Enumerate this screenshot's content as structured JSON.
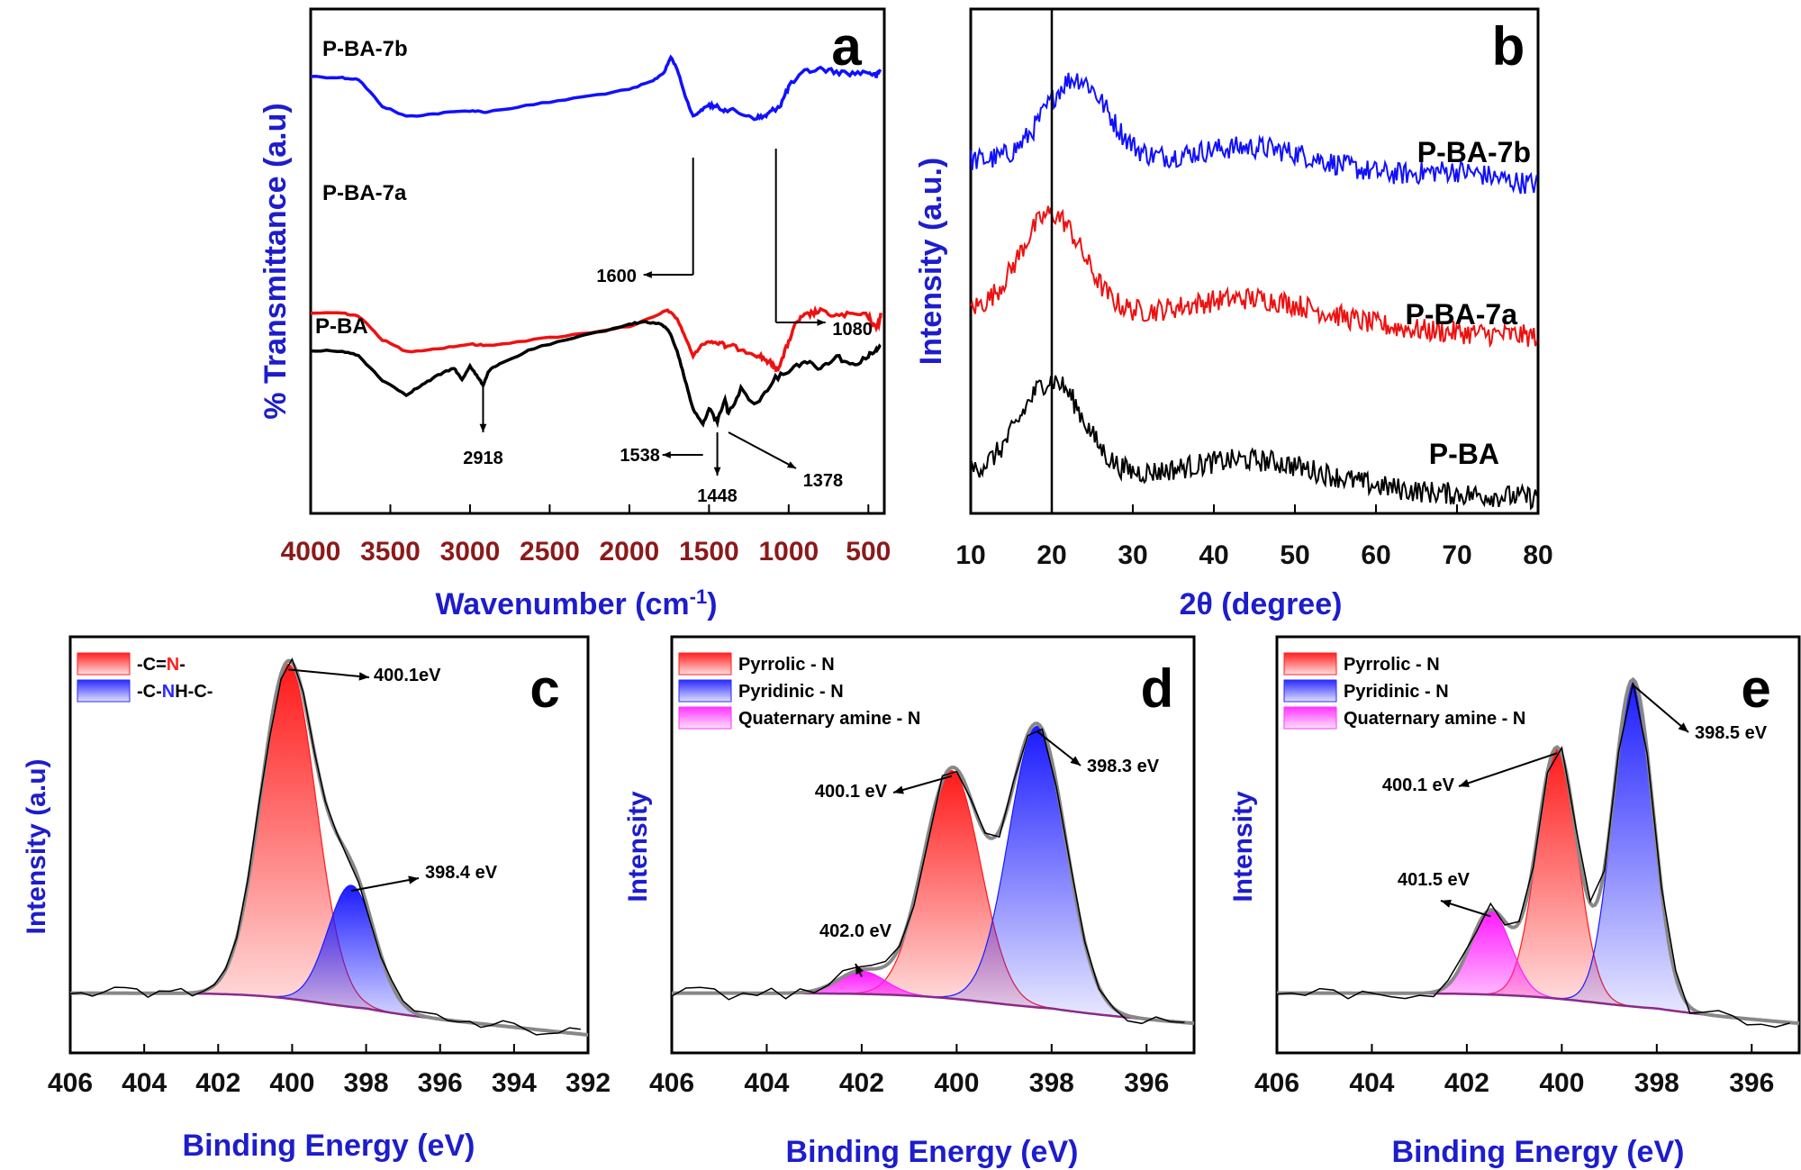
{
  "chart_data": [
    {
      "panel": "a",
      "type": "line",
      "xlabel": "Wavenumber (cm-1)",
      "xlabel_base": "Wavenumber (cm",
      "xlabel_sup": "-1",
      "xlabel_end": ")",
      "ylabel": "% Transmittance (a.u)",
      "xlim": [
        4000,
        400
      ],
      "xticks": [
        4000,
        3500,
        3000,
        2500,
        2000,
        1500,
        1000,
        500
      ],
      "series": [
        {
          "name": "P-BA-7b",
          "color": "#1010ff",
          "x": [
            4000,
            3800,
            3700,
            3550,
            3400,
            3200,
            3000,
            2900,
            2600,
            2300,
            2000,
            1850,
            1780,
            1740,
            1700,
            1650,
            1600,
            1550,
            1500,
            1450,
            1400,
            1300,
            1200,
            1150,
            1100,
            1050,
            1000,
            900,
            800,
            700,
            600,
            500,
            450,
            420
          ],
          "y": [
            0.85,
            0.84,
            0.83,
            0.65,
            0.58,
            0.6,
            0.62,
            0.61,
            0.66,
            0.71,
            0.76,
            0.82,
            0.88,
            0.98,
            0.9,
            0.72,
            0.58,
            0.62,
            0.66,
            0.64,
            0.63,
            0.6,
            0.57,
            0.58,
            0.62,
            0.66,
            0.78,
            0.88,
            0.9,
            0.88,
            0.87,
            0.88,
            0.85,
            0.9
          ]
        },
        {
          "name": "P-BA-7a",
          "color": "#ee1111",
          "x": [
            4000,
            3800,
            3700,
            3550,
            3400,
            3200,
            3000,
            2900,
            2600,
            2300,
            2000,
            1850,
            1760,
            1700,
            1650,
            1600,
            1550,
            1500,
            1450,
            1400,
            1300,
            1200,
            1150,
            1100,
            1080,
            1050,
            1000,
            950,
            900,
            850,
            800,
            700,
            600,
            500,
            460,
            430,
            420
          ],
          "y": [
            0.44,
            0.44,
            0.42,
            0.26,
            0.18,
            0.2,
            0.23,
            0.22,
            0.26,
            0.3,
            0.35,
            0.41,
            0.46,
            0.4,
            0.28,
            0.15,
            0.22,
            0.25,
            0.24,
            0.22,
            0.2,
            0.16,
            0.13,
            0.09,
            0.06,
            0.1,
            0.25,
            0.38,
            0.42,
            0.44,
            0.45,
            0.42,
            0.43,
            0.42,
            0.34,
            0.38,
            0.45
          ]
        },
        {
          "name": "P-BA",
          "color": "#000000",
          "x": [
            4000,
            3800,
            3700,
            3550,
            3400,
            3300,
            3200,
            3100,
            3050,
            3000,
            2950,
            2918,
            2880,
            2800,
            2600,
            2300,
            2000,
            1900,
            1800,
            1750,
            1700,
            1650,
            1600,
            1538,
            1500,
            1448,
            1400,
            1378,
            1300,
            1200,
            1100,
            1000,
            900,
            800,
            700,
            600,
            500,
            450,
            420
          ],
          "y": [
            0.02,
            0.02,
            0.0,
            -0.1,
            -0.16,
            -0.12,
            -0.08,
            -0.05,
            -0.1,
            -0.04,
            -0.09,
            -0.12,
            -0.06,
            -0.03,
            0.03,
            0.08,
            0.13,
            0.14,
            0.13,
            0.1,
            0.02,
            -0.1,
            -0.22,
            -0.28,
            -0.22,
            -0.27,
            -0.18,
            -0.24,
            -0.14,
            -0.2,
            -0.1,
            -0.06,
            -0.02,
            -0.05,
            0.0,
            -0.04,
            0.0,
            0.02,
            0.04
          ]
        }
      ],
      "annotations": [
        "2918",
        "1538",
        "1448",
        "1378",
        "1600",
        "1080"
      ]
    },
    {
      "panel": "b",
      "type": "line",
      "xlabel": "2θ (degree)",
      "ylabel": "Intensity (a.u.)",
      "xlim": [
        10,
        80
      ],
      "xticks": [
        10,
        20,
        30,
        40,
        50,
        60,
        70,
        80
      ],
      "vline": 20,
      "series": [
        {
          "name": "P-BA-7b",
          "color": "#1010ff",
          "peak_center": 23,
          "peak_height": 0.17,
          "baseline": 0.7
        },
        {
          "name": "P-BA-7a",
          "color": "#ee1111",
          "peak_center": 20,
          "peak_height": 0.2,
          "baseline": 0.4
        },
        {
          "name": "P-BA",
          "color": "#000000",
          "peak_center": 20,
          "peak_height": 0.19,
          "baseline": 0.08
        }
      ]
    },
    {
      "panel": "c",
      "type": "area",
      "xlabel": "Binding Energy (eV)",
      "ylabel": "Intensity (a.u)",
      "xlim": [
        406,
        392
      ],
      "xticks": [
        406,
        404,
        402,
        400,
        398,
        396,
        394,
        392
      ],
      "legend": [
        {
          "pre": "-C=",
          "hi": "N",
          "post": "-",
          "color": "#ff2020",
          "hi_color": "#ff2020"
        },
        {
          "pre": "-C-",
          "hi": "N",
          "post": "H-C-",
          "color": "#2a2aff",
          "hi_color": "#2a2aff"
        }
      ],
      "peaks": [
        {
          "name": "-C=N-",
          "center": 400.1,
          "height": 0.88,
          "sigma": 1.05,
          "color": "#ff1a1a"
        },
        {
          "name": "-C-NH-C-",
          "center": 398.4,
          "height": 0.32,
          "sigma": 0.9,
          "color": "#1a1aff"
        }
      ],
      "annotations": [
        "400.1eV",
        "398.4 eV"
      ]
    },
    {
      "panel": "d",
      "type": "area",
      "xlabel": "Binding Energy (eV)",
      "ylabel": "Intensity",
      "xlim": [
        406,
        395
      ],
      "xticks": [
        406,
        404,
        402,
        400,
        398,
        396
      ],
      "legend": [
        {
          "pre": "Pyrrolic - N",
          "hi": "",
          "post": "",
          "color": "#ff2020"
        },
        {
          "pre": "Pyridinic - N",
          "hi": "",
          "post": "",
          "color": "#2a2aff"
        },
        {
          "pre": "Quaternary amine - N",
          "hi": "",
          "post": "",
          "color": "#ff33ff"
        }
      ],
      "peaks": [
        {
          "name": "Pyrrolic - N",
          "center": 400.1,
          "height": 0.6,
          "sigma": 0.85,
          "color": "#ff1a1a"
        },
        {
          "name": "Pyridinic - N",
          "center": 398.3,
          "height": 0.74,
          "sigma": 0.85,
          "color": "#1a1aff"
        },
        {
          "name": "Quaternary amine - N",
          "center": 402.0,
          "height": 0.06,
          "sigma": 0.7,
          "color": "#ff1aff"
        }
      ],
      "annotations": [
        "400.1 eV",
        "398.3 eV",
        "402.0 eV"
      ]
    },
    {
      "panel": "e",
      "type": "area",
      "xlabel": "Binding Energy (eV)",
      "ylabel": "Intensity",
      "xlim": [
        406,
        395
      ],
      "xticks": [
        406,
        404,
        402,
        400,
        398,
        396
      ],
      "legend": [
        {
          "pre": "Pyrrolic - N",
          "hi": "",
          "post": "",
          "color": "#ff2020"
        },
        {
          "pre": "Pyridinic - N",
          "hi": "",
          "post": "",
          "color": "#2a2aff"
        },
        {
          "pre": "Quaternary amine - N",
          "hi": "",
          "post": "",
          "color": "#ff33ff"
        }
      ],
      "peaks": [
        {
          "name": "Pyrrolic - N",
          "center": 400.1,
          "height": 0.66,
          "sigma": 0.6,
          "color": "#ff1a1a"
        },
        {
          "name": "Pyridinic - N",
          "center": 398.5,
          "height": 0.86,
          "sigma": 0.6,
          "color": "#1a1aff"
        },
        {
          "name": "Quaternary amine - N",
          "center": 401.5,
          "height": 0.22,
          "sigma": 0.6,
          "color": "#ff1aff"
        }
      ],
      "annotations": [
        "400.1 eV",
        "398.5 eV",
        "401.5 eV"
      ]
    }
  ]
}
